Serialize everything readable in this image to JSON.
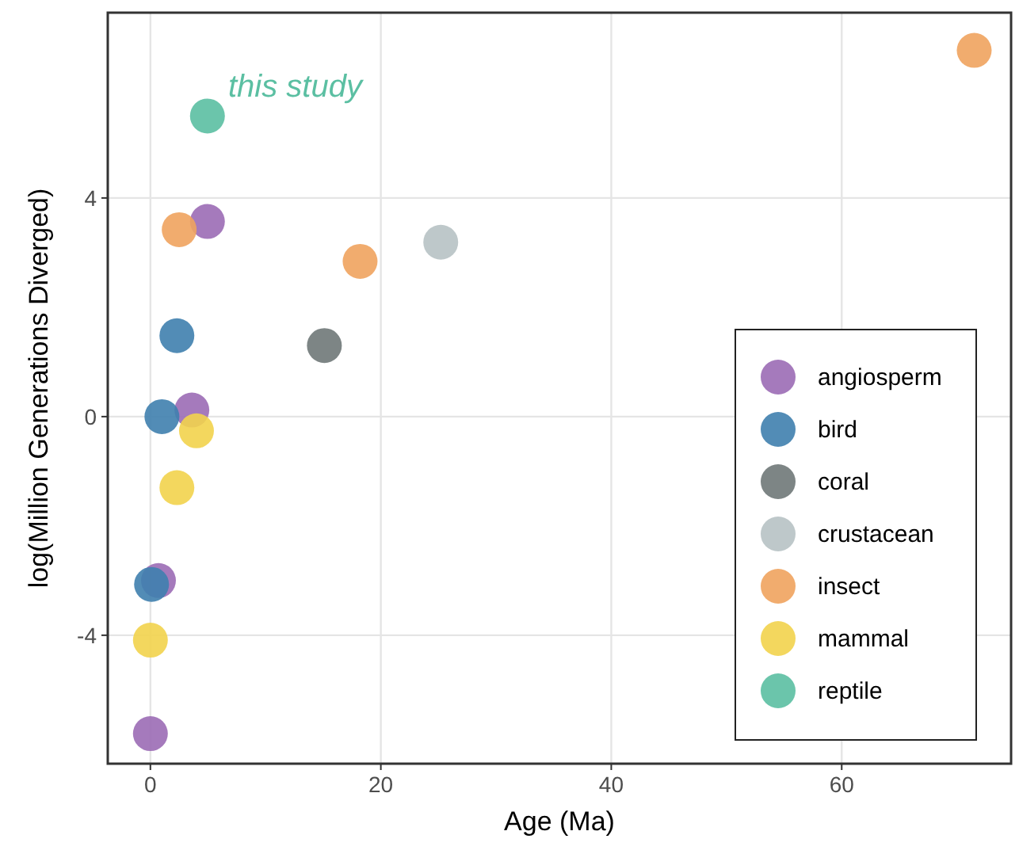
{
  "chart_data": {
    "type": "scatter",
    "xlabel": "Age (Ma)",
    "ylabel": "log(Million Generations Diverged)",
    "xlim": [
      -3.7,
      74.7
    ],
    "ylim": [
      -6.35,
      7.39
    ],
    "xticks": [
      0,
      20,
      40,
      60
    ],
    "yticks": [
      -4,
      0,
      4
    ],
    "grid": true,
    "legend": "bottom right",
    "marker": "circle",
    "annotations": [
      "this study"
    ],
    "series": [
      {
        "name": "angiosperm",
        "color": "#9b6bb5",
        "x": [
          4.95,
          3.6,
          0.7,
          0
        ],
        "values": [
          3.57,
          0.12,
          -3.0,
          -5.8
        ]
      },
      {
        "name": "bird",
        "color": "#3f7fae",
        "x": [
          2.3,
          1.0,
          0.1
        ],
        "values": [
          1.48,
          0.0,
          -3.07
        ]
      },
      {
        "name": "coral",
        "color": "#6f7878",
        "x": [
          15.1
        ],
        "values": [
          1.3
        ]
      },
      {
        "name": "crustacean",
        "color": "#b7c2c4",
        "x": [
          25.2
        ],
        "values": [
          3.19
        ]
      },
      {
        "name": "insect",
        "color": "#f0a35e",
        "x": [
          71.5,
          2.5,
          18.2
        ],
        "values": [
          6.7,
          3.42,
          2.84
        ]
      },
      {
        "name": "mammal",
        "color": "#f2d34c",
        "x": [
          4.0,
          2.3,
          0
        ],
        "values": [
          -0.26,
          -1.3,
          -4.09
        ]
      },
      {
        "name": "reptile",
        "color": "#5bbfa2",
        "x": [
          4.95
        ],
        "values": [
          5.5
        ]
      }
    ]
  }
}
